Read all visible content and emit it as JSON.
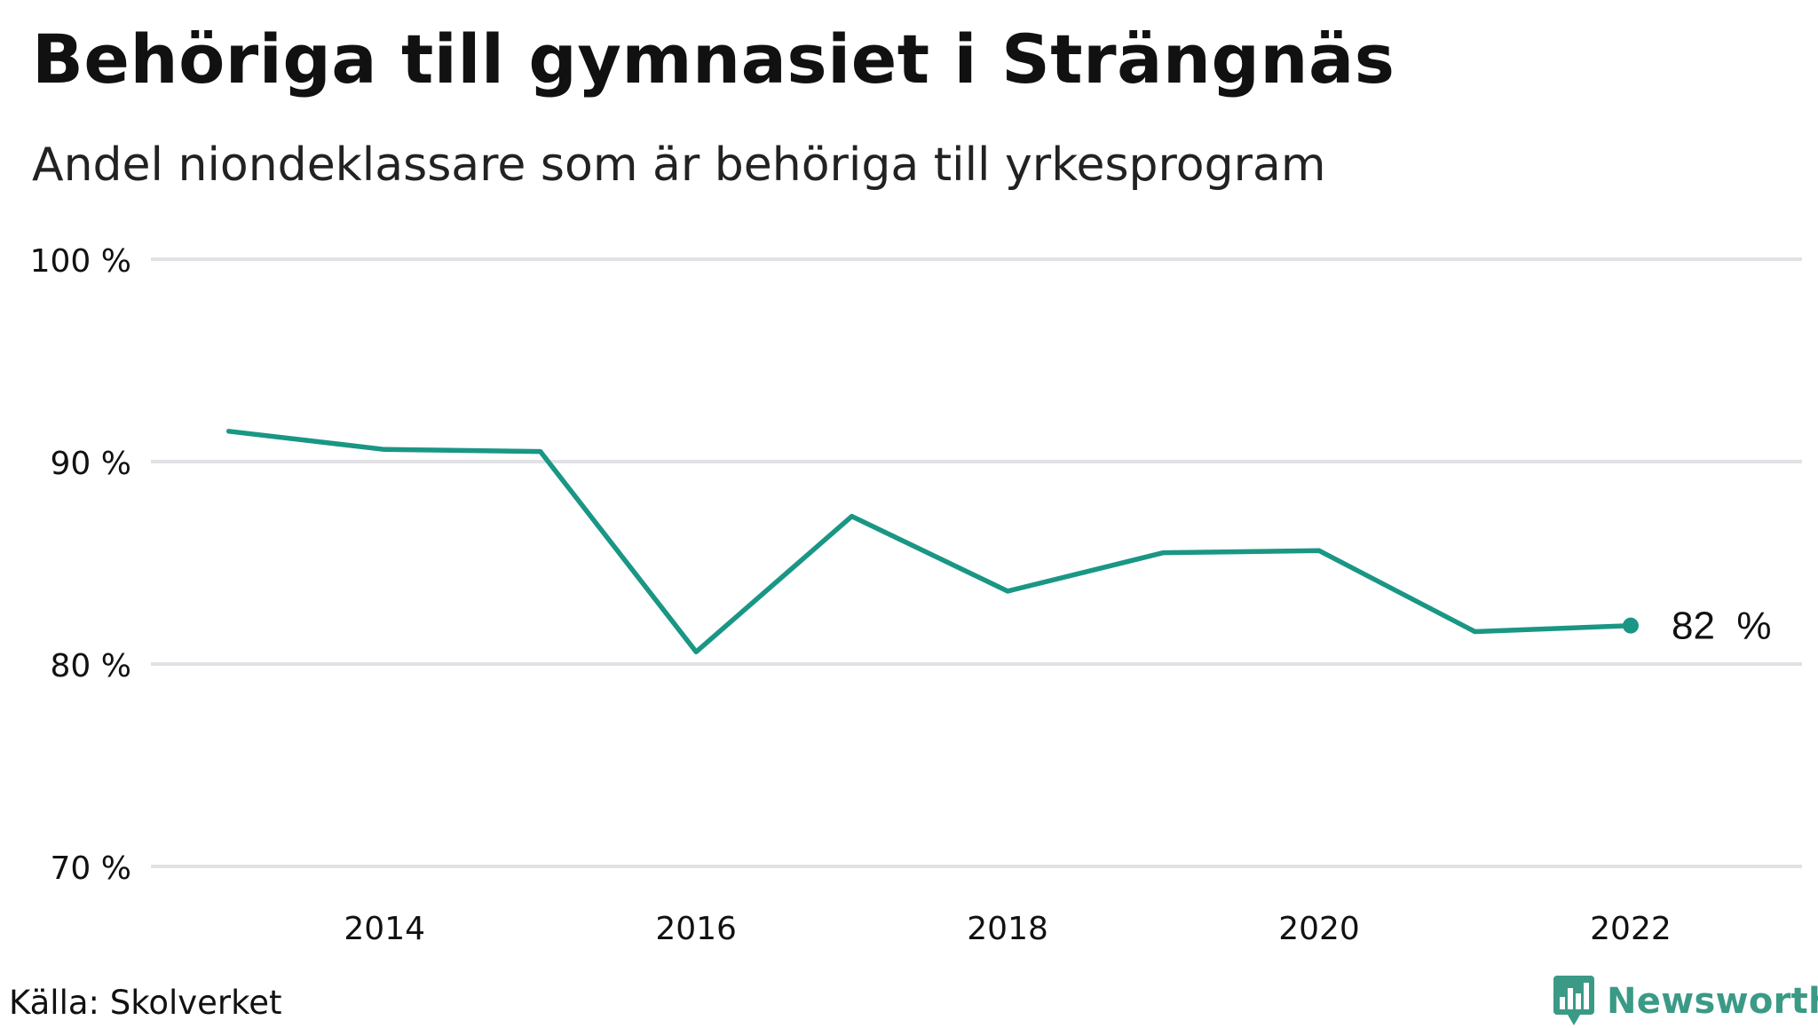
{
  "title": "Behöriga till gymnasiet i Strängnäs",
  "subtitle": "Andel niondeklassare som är behöriga till yrkesprogram",
  "source": "Källa: Skolverket",
  "brand": "Newsworthy",
  "colors": {
    "line": "#1a9685",
    "grid": "#e2e2e6",
    "brand": "#3a9a86"
  },
  "chart_data": {
    "type": "line",
    "x": [
      2013,
      2014,
      2015,
      2016,
      2017,
      2018,
      2019,
      2020,
      2021,
      2022
    ],
    "series": [
      {
        "values": [
          91.5,
          90.6,
          90.5,
          80.6,
          87.3,
          83.6,
          85.5,
          85.6,
          81.6,
          81.9
        ]
      }
    ],
    "xticks": [
      2014,
      2016,
      2018,
      2020,
      2022
    ],
    "xtick_labels": [
      "2014",
      "2016",
      "2018",
      "2020",
      "2022"
    ],
    "yticks": [
      70,
      80,
      90,
      100
    ],
    "ytick_labels": [
      "70 %",
      "80 %",
      "90 %",
      "100 %"
    ],
    "ylim": [
      70,
      100
    ],
    "xlim": [
      2012.5,
      2023.1
    ],
    "grid": true,
    "end_label": "82  %"
  }
}
